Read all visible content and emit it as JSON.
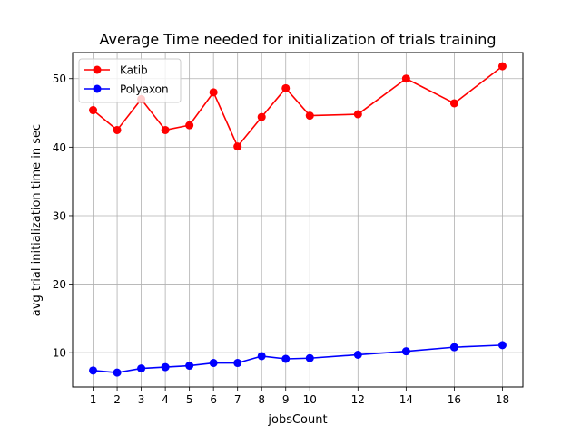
{
  "chart_data": {
    "type": "line",
    "title": "Average Time needed for initialization of  trials training",
    "xlabel": "jobsCount",
    "ylabel": "avg trial initialization time in sec",
    "x": [
      1,
      2,
      3,
      4,
      5,
      6,
      7,
      8,
      9,
      10,
      12,
      14,
      16,
      18
    ],
    "xticks": [
      "1",
      "2",
      "3",
      "4",
      "5",
      "6",
      "7",
      "8",
      "9",
      "10",
      "12",
      "14",
      "16",
      "18"
    ],
    "yticks": [
      "10",
      "20",
      "30",
      "40",
      "50"
    ],
    "xlim": [
      0.15,
      18.85
    ],
    "ylim": [
      5,
      53.8
    ],
    "grid": true,
    "legend_position": "top-left",
    "series": [
      {
        "name": "Katib",
        "color": "#ff0000",
        "values": [
          45.4,
          42.5,
          47.0,
          42.5,
          43.2,
          48.0,
          40.1,
          44.4,
          48.6,
          44.6,
          44.8,
          50.0,
          46.4,
          51.8
        ]
      },
      {
        "name": "Polyaxon",
        "color": "#0000ff",
        "values": [
          7.4,
          7.1,
          7.7,
          7.9,
          8.1,
          8.5,
          8.5,
          9.5,
          9.1,
          9.2,
          9.7,
          10.2,
          10.8,
          11.1
        ]
      }
    ]
  }
}
